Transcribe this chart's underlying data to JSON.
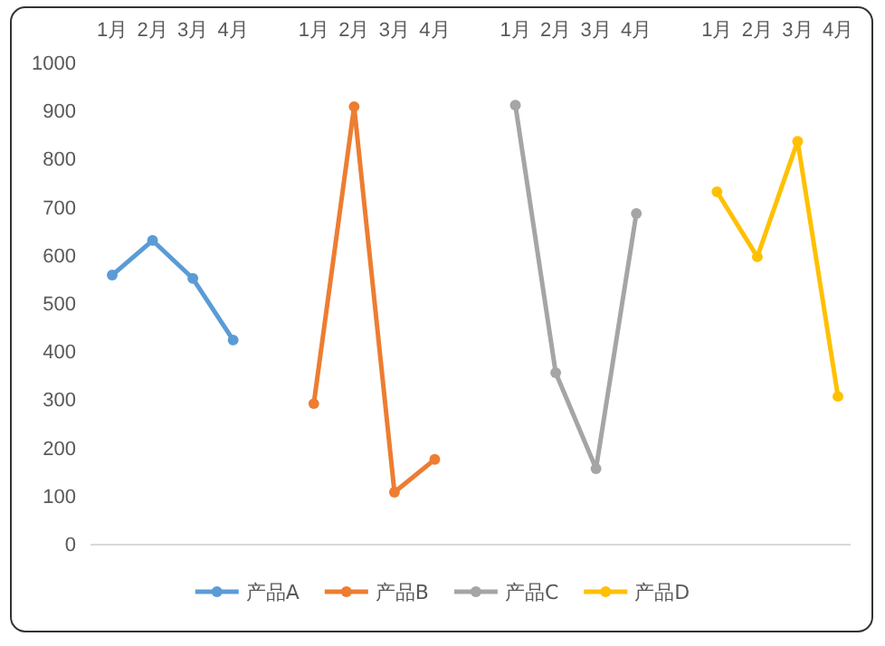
{
  "chart_data": {
    "type": "line",
    "categories": [
      "1月",
      "2月",
      "3月",
      "4月",
      null,
      "1月",
      "2月",
      "3月",
      "4月",
      null,
      "1月",
      "2月",
      "3月",
      "4月",
      null,
      "1月",
      "2月",
      "3月",
      "4月"
    ],
    "series": [
      {
        "name": "产品A",
        "color": "#5b9bd5",
        "values": [
          560,
          632,
          553,
          425,
          null,
          null,
          null,
          null,
          null,
          null,
          null,
          null,
          null,
          null,
          null,
          null,
          null,
          null,
          null
        ]
      },
      {
        "name": "产品B",
        "color": "#ed7d31",
        "values": [
          null,
          null,
          null,
          null,
          null,
          293,
          910,
          109,
          177,
          null,
          null,
          null,
          null,
          null,
          null,
          null,
          null,
          null,
          null
        ]
      },
      {
        "name": "产品C",
        "color": "#a5a5a5",
        "values": [
          null,
          null,
          null,
          null,
          null,
          null,
          null,
          null,
          null,
          null,
          913,
          357,
          158,
          688,
          null,
          null,
          null,
          null,
          null
        ]
      },
      {
        "name": "产品D",
        "color": "#ffc000",
        "values": [
          null,
          null,
          null,
          null,
          null,
          null,
          null,
          null,
          null,
          null,
          null,
          null,
          null,
          null,
          null,
          733,
          598,
          838,
          308
        ]
      }
    ],
    "ylim": [
      0,
      1000
    ],
    "yticks": [
      0,
      100,
      200,
      300,
      400,
      500,
      600,
      700,
      800,
      900,
      1000
    ],
    "grid": false,
    "legend": "bottom",
    "marker": "circle",
    "line_style": "solid"
  }
}
